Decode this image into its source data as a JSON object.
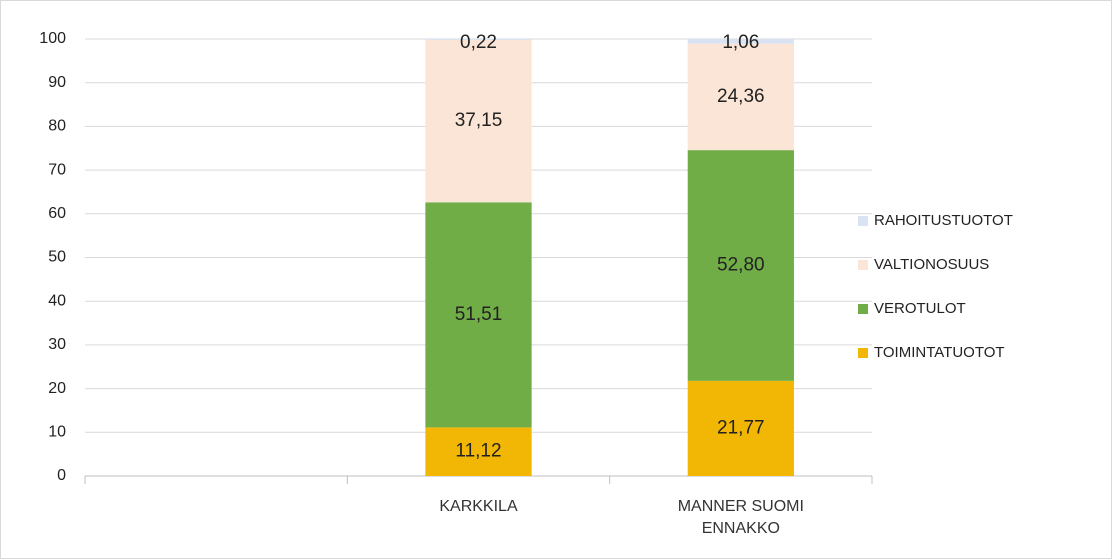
{
  "chart_data": {
    "type": "stacked_bar",
    "categories": [
      null,
      "KARKKILA",
      "MANNER SUOMI ENNAKKO"
    ],
    "series": [
      {
        "name": "TOIMINTATUOTOT",
        "color": "#f2b705",
        "values": [
          null,
          11.12,
          21.77
        ],
        "value_labels": [
          null,
          "11,12",
          "21,77"
        ]
      },
      {
        "name": "VEROTULOT",
        "color": "#70ad47",
        "values": [
          null,
          51.51,
          52.8
        ],
        "value_labels": [
          null,
          "51,51",
          "52,80"
        ]
      },
      {
        "name": "VALTIONOSUUS",
        "color": "#fbe5d6",
        "values": [
          null,
          37.15,
          24.36
        ],
        "value_labels": [
          null,
          "37,15",
          "24,36"
        ]
      },
      {
        "name": "RAHOITUSTUOTOT",
        "color": "#dae3f3",
        "values": [
          null,
          0.22,
          1.06
        ],
        "value_labels": [
          null,
          "0,22",
          "1,06"
        ]
      }
    ],
    "ylim": [
      0,
      100
    ],
    "yticks": [
      0,
      10,
      20,
      30,
      40,
      50,
      60,
      70,
      80,
      90,
      100
    ],
    "grid": true,
    "legend": "right"
  }
}
